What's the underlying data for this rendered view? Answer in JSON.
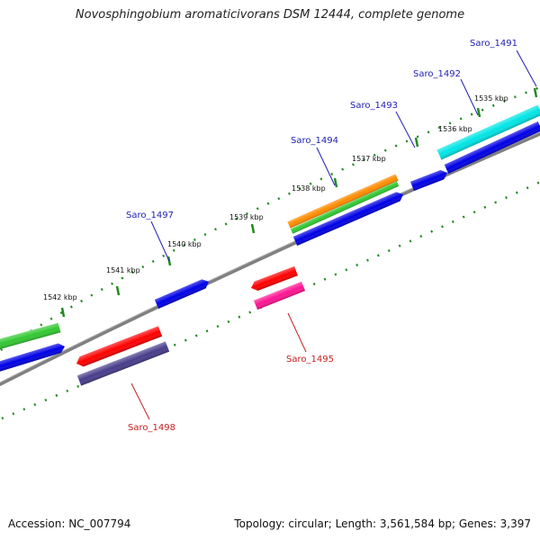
{
  "title": "Novosphingobium aromaticivorans DSM 12444, complete genome",
  "footer": {
    "accession": "Accession: NC_007794",
    "summary": "Topology: circular; Length: 3,561,584 bp; Genes: 3,397"
  },
  "colors": {
    "backbone": "#808080",
    "ticks": "#228b22",
    "forward_label": "#1e1eb4",
    "reverse_label": "#c81e1e"
  },
  "tick_labels": [
    "1535 kbp",
    "1536 kbp",
    "1537 kbp",
    "1538 kbp",
    "1539 kbp",
    "1540 kbp",
    "1541 kbp",
    "1542 kbp"
  ],
  "genes": [
    {
      "id": "Saro_1491",
      "strand": "forward",
      "color": "#00e5e5",
      "cog_color": "#0000e6"
    },
    {
      "id": "Saro_1492",
      "strand": "forward",
      "color": "#0000e6"
    },
    {
      "id": "Saro_1493",
      "strand": "forward",
      "color": "#0000e6"
    },
    {
      "id": "Saro_1494",
      "strand": "forward",
      "color": "#ff8c00",
      "cog_color": "#32c832"
    },
    {
      "id": "Saro_1495",
      "strand": "reverse",
      "color": "#ff0000",
      "cog_color": "#ff1493"
    },
    {
      "id": "Saro_1497",
      "strand": "forward",
      "color": "#0000e6"
    },
    {
      "id": "Saro_1498",
      "strand": "reverse",
      "color": "#ff0000",
      "cog_color": "#483d8b"
    }
  ]
}
